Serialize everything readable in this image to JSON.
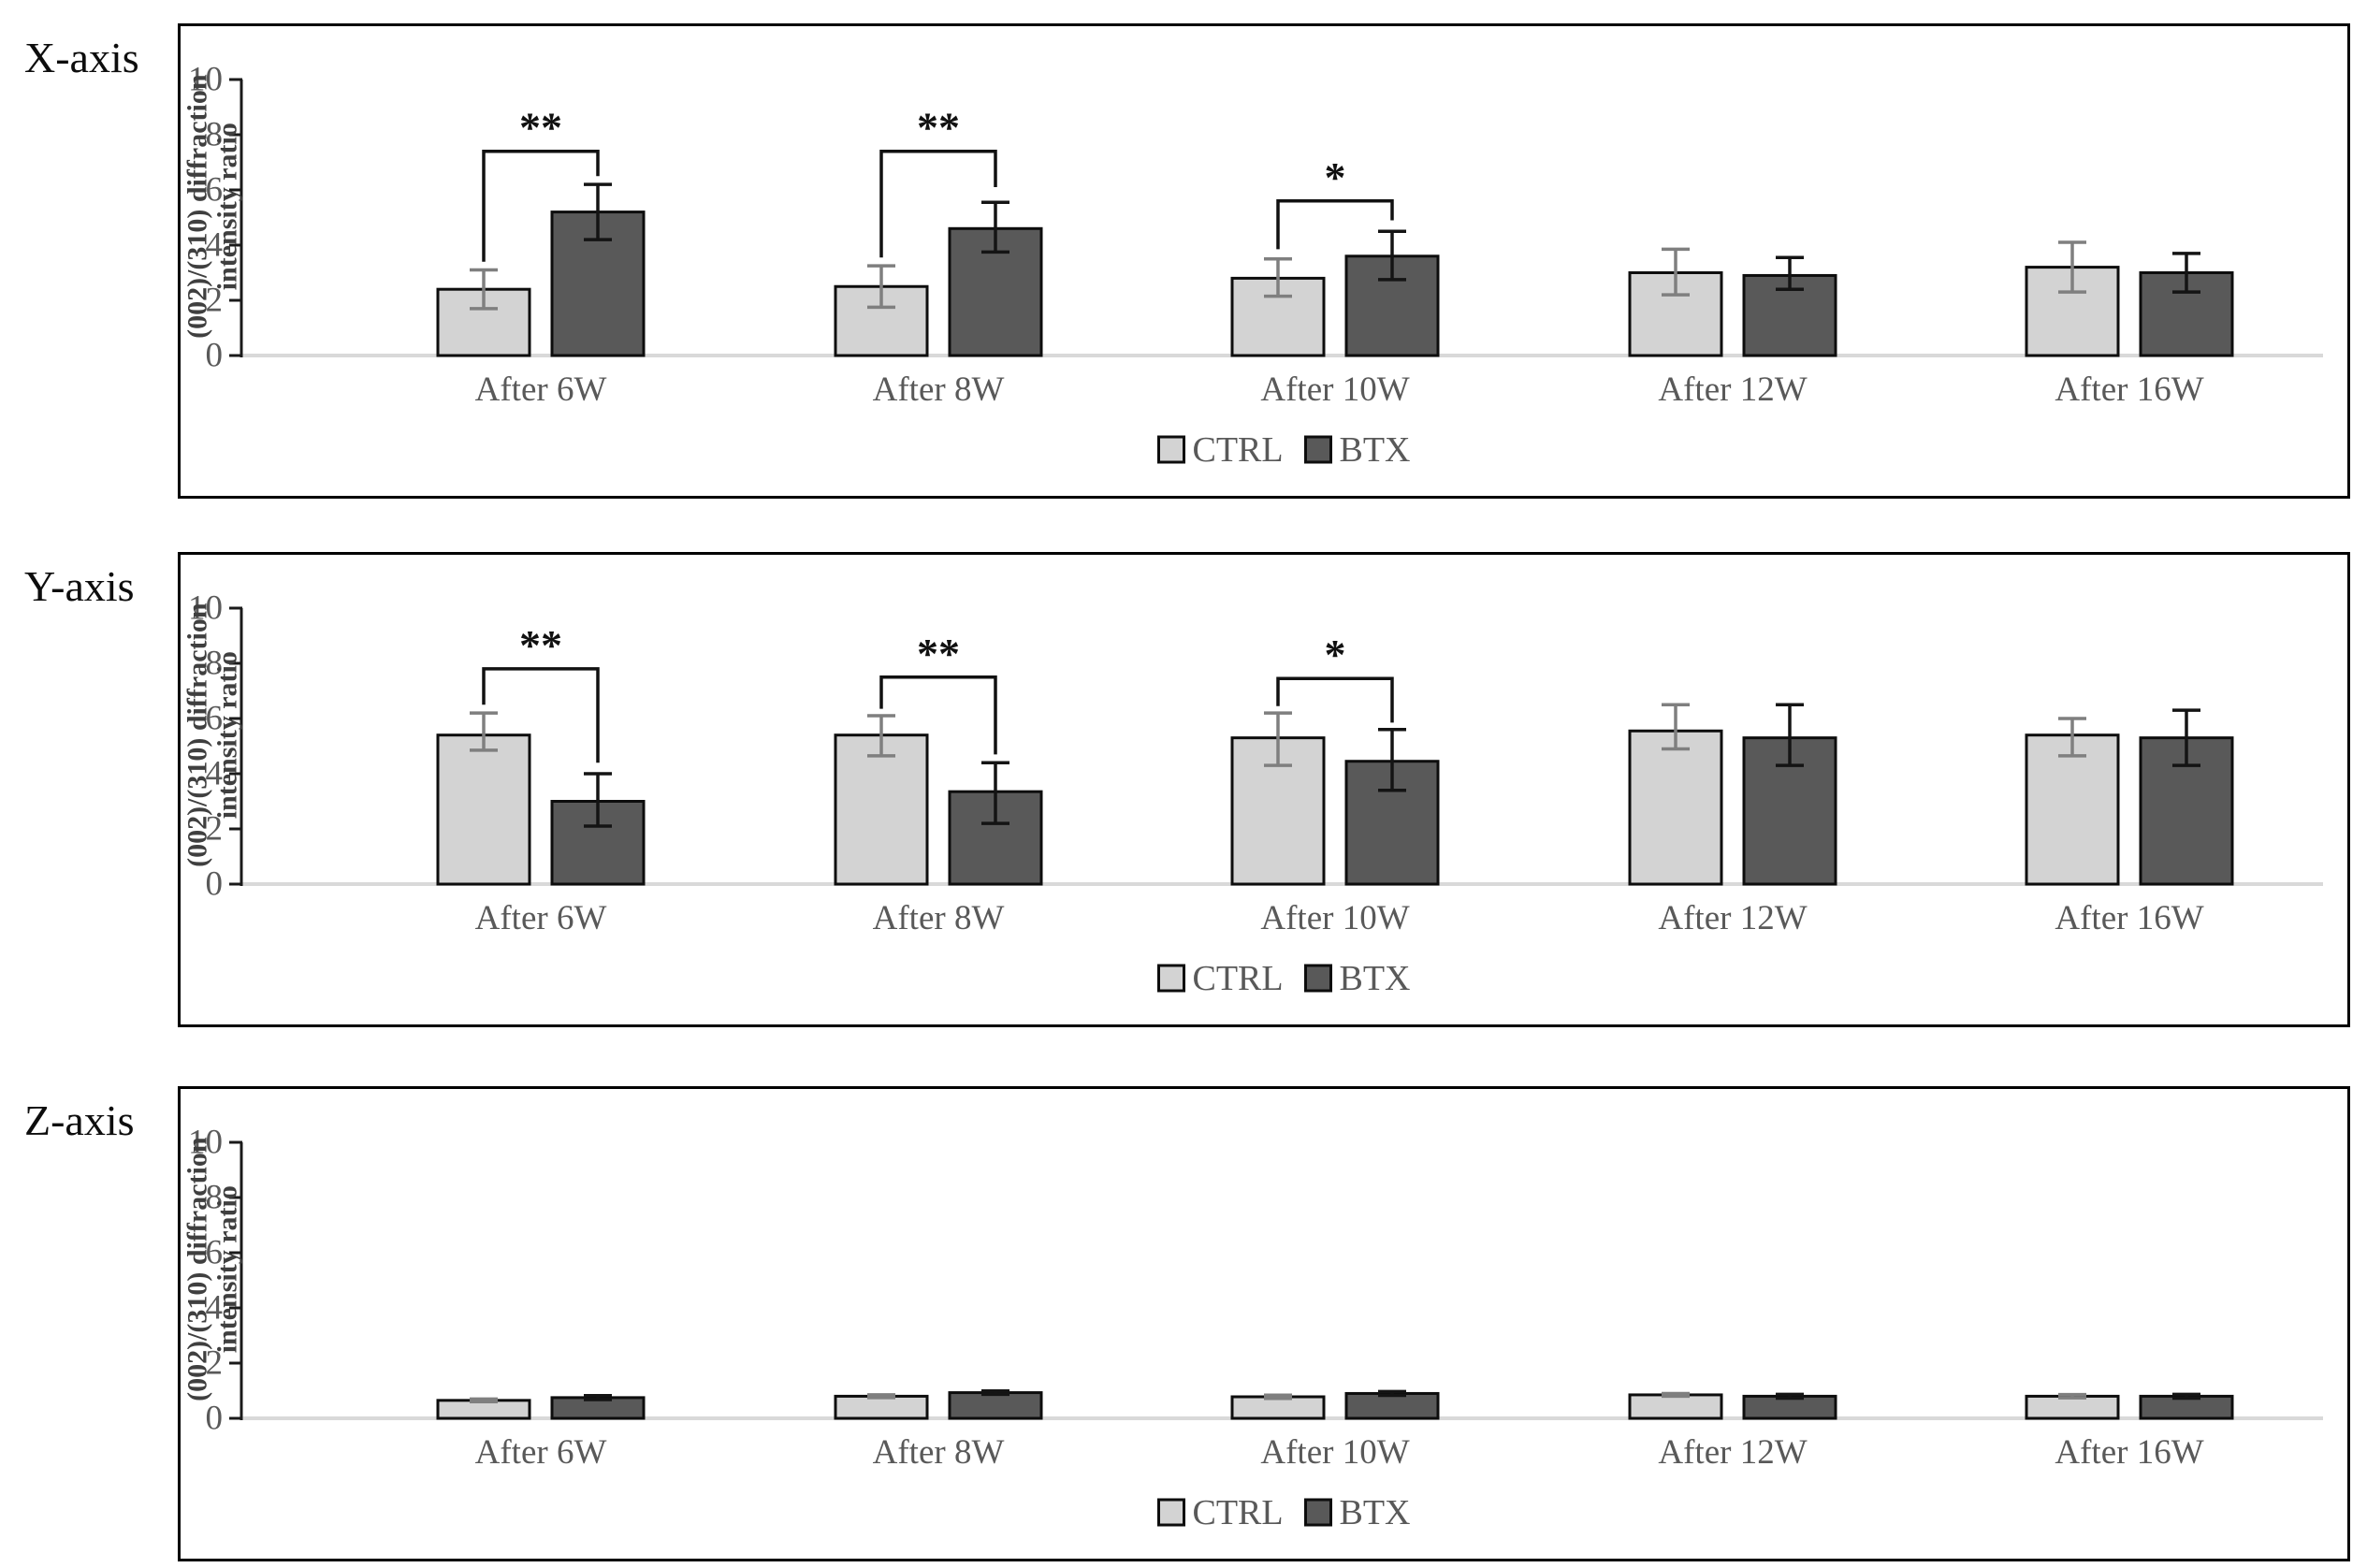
{
  "figure": {
    "background": "#ffffff",
    "description": "XRD (002)/(310) diffraction intensity ratio bar charts along X, Y and Z axes"
  },
  "colors": {
    "ctrl_fill": "#d3d3d3",
    "btx_fill": "#595959",
    "bar_stroke": "#0d0d0d",
    "ctrl_err": "#7f7f7f",
    "btx_err": "#141414",
    "axis_line": "#1a1a1a",
    "baseline": "#d9d9d9",
    "tick_text": "#595959",
    "category_text": "#595959",
    "ylabel_text": "#3f3f3f",
    "legend_text": "#595959",
    "sig_color": "#111111",
    "panel_title": "#0d0d0d"
  },
  "axis": {
    "ylabel": "(002)/(310) diffraction intensity ratio",
    "ylabel_line1": "(002)/(310) diffraction",
    "ylabel_line2": "intensity ratio",
    "ticks": [
      0,
      2,
      4,
      6,
      8,
      10
    ],
    "ylim": [
      0,
      10
    ]
  },
  "legend": {
    "items": [
      {
        "label": "CTRL",
        "fill": "#d3d3d3"
      },
      {
        "label": "BTX",
        "fill": "#595959"
      }
    ],
    "position": "bottom-center"
  },
  "chart_data": [
    {
      "type": "bar",
      "panel_label": "X-axis",
      "title": "",
      "xlabel": "",
      "ylabel": "(002)/(310) diffraction intensity ratio",
      "ylim": [
        0,
        10
      ],
      "grid": false,
      "categories": [
        "After 6W",
        "After 8W",
        "After 10W",
        "After 12W",
        "After 16W"
      ],
      "series": [
        {
          "name": "CTRL",
          "values": [
            2.4,
            2.5,
            2.8,
            3.0,
            3.2
          ],
          "err_lo": [
            1.7,
            1.75,
            2.15,
            2.2,
            2.3
          ],
          "err_hi": [
            3.1,
            3.25,
            3.5,
            3.85,
            4.1
          ]
        },
        {
          "name": "BTX",
          "values": [
            5.2,
            4.6,
            3.6,
            2.9,
            3.0
          ],
          "err_lo": [
            4.2,
            3.75,
            2.75,
            2.4,
            2.3
          ],
          "err_hi": [
            6.2,
            5.55,
            4.5,
            3.55,
            3.7
          ]
        }
      ],
      "significance": [
        {
          "group": 0,
          "label": "**",
          "top": 7.4,
          "left_end": 3.4,
          "right_end": 6.5
        },
        {
          "group": 1,
          "label": "**",
          "top": 7.4,
          "left_end": 3.55,
          "right_end": 6.1
        },
        {
          "group": 2,
          "label": "*",
          "top": 5.6,
          "left_end": 3.85,
          "right_end": 4.9
        }
      ]
    },
    {
      "type": "bar",
      "panel_label": "Y-axis",
      "title": "",
      "xlabel": "",
      "ylabel": "(002)/(310) diffraction intensity ratio",
      "ylim": [
        0,
        10
      ],
      "grid": false,
      "categories": [
        "After 6W",
        "After 8W",
        "After 10W",
        "After 12W",
        "After 16W"
      ],
      "series": [
        {
          "name": "CTRL",
          "values": [
            5.4,
            5.4,
            5.3,
            5.55,
            5.4
          ],
          "err_lo": [
            4.85,
            4.65,
            4.3,
            4.9,
            4.65
          ],
          "err_hi": [
            6.2,
            6.1,
            6.2,
            6.5,
            6.0
          ]
        },
        {
          "name": "BTX",
          "values": [
            3.0,
            3.35,
            4.45,
            5.3,
            5.3
          ],
          "err_lo": [
            2.1,
            2.2,
            3.4,
            4.3,
            4.3
          ],
          "err_hi": [
            4.0,
            4.4,
            5.6,
            6.5,
            6.3
          ]
        }
      ],
      "significance": [
        {
          "group": 0,
          "label": "**",
          "top": 7.8,
          "left_end": 6.5,
          "right_end": 4.4
        },
        {
          "group": 1,
          "label": "**",
          "top": 7.5,
          "left_end": 6.35,
          "right_end": 4.7
        },
        {
          "group": 2,
          "label": "*",
          "top": 7.45,
          "left_end": 6.45,
          "right_end": 5.85
        }
      ]
    },
    {
      "type": "bar",
      "panel_label": "Z-axis",
      "title": "",
      "xlabel": "",
      "ylabel": "(002)/(310) diffraction intensity ratio",
      "ylim": [
        0,
        10
      ],
      "grid": false,
      "categories": [
        "After 6W",
        "After 8W",
        "After 10W",
        "After 12W",
        "After 16W"
      ],
      "series": [
        {
          "name": "CTRL",
          "values": [
            0.65,
            0.8,
            0.78,
            0.85,
            0.8
          ],
          "err_lo": [
            0.6,
            0.75,
            0.72,
            0.8,
            0.74
          ],
          "err_hi": [
            0.7,
            0.85,
            0.84,
            0.9,
            0.86
          ]
        },
        {
          "name": "BTX",
          "values": [
            0.75,
            0.93,
            0.9,
            0.8,
            0.8
          ],
          "err_lo": [
            0.68,
            0.87,
            0.83,
            0.73,
            0.73
          ],
          "err_hi": [
            0.82,
            0.99,
            0.97,
            0.87,
            0.87
          ]
        }
      ],
      "significance": []
    }
  ]
}
